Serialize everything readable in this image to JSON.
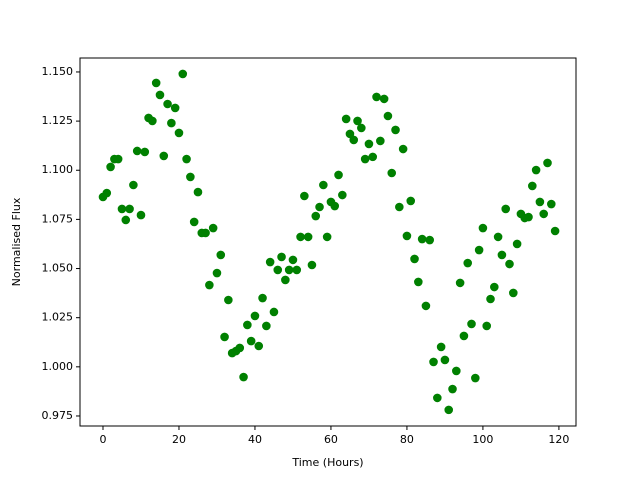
{
  "chart_data": {
    "type": "scatter",
    "xlabel": "Time (Hours)",
    "ylabel": "Normalised Flux",
    "color": "#008000",
    "x": [
      0,
      1,
      2,
      3,
      4,
      5,
      6,
      7,
      8,
      9,
      10,
      11,
      12,
      13,
      14,
      15,
      16,
      17,
      18,
      19,
      20,
      21,
      22,
      23,
      24,
      25,
      26,
      27,
      28,
      29,
      30,
      31,
      32,
      33,
      34,
      35,
      36,
      37,
      38,
      39,
      40,
      41,
      42,
      43,
      44,
      45,
      46,
      47,
      48,
      49,
      50,
      51,
      52,
      53,
      54,
      55,
      56,
      57,
      58,
      59,
      60,
      61,
      62,
      63,
      64,
      65,
      66,
      67,
      68,
      69,
      70,
      71,
      72,
      73,
      74,
      75,
      76,
      77,
      78,
      79,
      80,
      81,
      82,
      83,
      84,
      85,
      86,
      87,
      88,
      89,
      90,
      91,
      92,
      93,
      94,
      95,
      96,
      97,
      98,
      99,
      100,
      101,
      102,
      103,
      104,
      105,
      106,
      107,
      108,
      109,
      110,
      111,
      112,
      113,
      114,
      115,
      116,
      117,
      118,
      119
    ],
    "y": [
      1.0864,
      1.0884,
      1.1017,
      1.1057,
      1.1057,
      1.0803,
      1.0747,
      1.0803,
      1.0925,
      1.1098,
      1.0772,
      1.1093,
      1.1266,
      1.1251,
      1.1444,
      1.1383,
      1.1073,
      1.1337,
      1.124,
      1.1317,
      1.119,
      1.149,
      1.1057,
      1.0966,
      1.0737,
      1.0889,
      1.0681,
      1.0681,
      1.0416,
      1.0706,
      1.0477,
      1.0569,
      1.0152,
      1.034,
      1.007,
      1.008,
      1.0096,
      0.9948,
      1.0213,
      1.0131,
      1.0259,
      1.0106,
      1.035,
      1.0208,
      1.0533,
      1.0279,
      1.0493,
      1.0559,
      1.0442,
      1.0493,
      1.0544,
      1.0493,
      1.0661,
      1.0869,
      1.0661,
      1.0518,
      1.0767,
      1.0813,
      1.0925,
      1.0661,
      1.0839,
      1.0818,
      1.0976,
      1.0874,
      1.1261,
      1.1185,
      1.1154,
      1.1251,
      1.1215,
      1.1057,
      1.1134,
      1.1068,
      1.1373,
      1.1149,
      1.1363,
      1.1276,
      1.0986,
      1.1205,
      1.0813,
      1.1108,
      1.0666,
      1.0844,
      1.0549,
      1.0432,
      1.065,
      1.031,
      1.0645,
      1.0025,
      0.9842,
      1.0101,
      1.0035,
      0.9781,
      0.9887,
      0.9979,
      1.0427,
      1.0157,
      1.0528,
      1.0218,
      0.9943,
      1.0594,
      1.0706,
      1.0208,
      1.0345,
      1.0406,
      1.0661,
      1.0569,
      1.0803,
      1.0523,
      1.0376,
      1.0625,
      1.0778,
      1.0757,
      1.0762,
      1.092,
      1.1001,
      1.0839,
      1.0778,
      1.1037,
      1.0828,
      1.0691
    ],
    "xlim": [
      -6.05,
      124.5
    ],
    "ylim": [
      0.9699,
      1.1571
    ],
    "xticks": [
      0,
      20,
      40,
      60,
      80,
      100,
      120
    ],
    "yticks": [
      {
        "value": 0.975,
        "label": "0.975"
      },
      {
        "value": 1.0,
        "label": "1.000"
      },
      {
        "value": 1.025,
        "label": "1.025"
      },
      {
        "value": 1.05,
        "label": "1.050"
      },
      {
        "value": 1.075,
        "label": "1.075"
      },
      {
        "value": 1.1,
        "label": "1.100"
      },
      {
        "value": 1.125,
        "label": "1.125"
      },
      {
        "value": 1.15,
        "label": "1.150"
      }
    ]
  }
}
